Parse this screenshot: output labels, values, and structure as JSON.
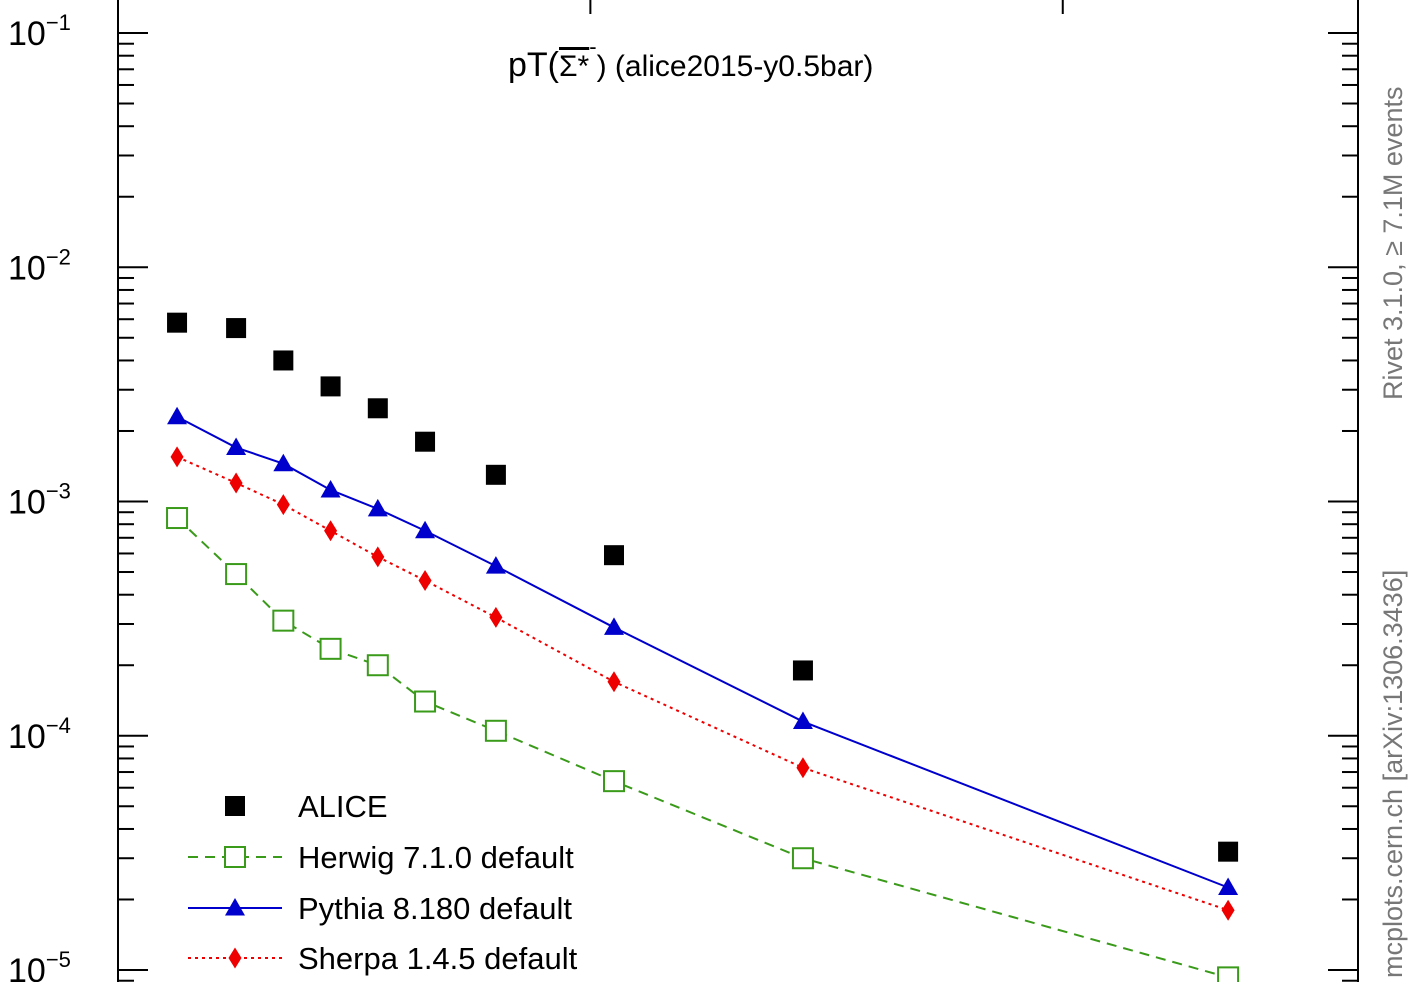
{
  "chart_data": {
    "type": "scatter",
    "title": {
      "prefix": "pT(",
      "particle": "Σ*",
      "charge": "-",
      "suffix": ") (alice2015-y0.5bar)"
    },
    "xlabel": "",
    "ylabel": "",
    "yscale": "log",
    "ylim": [
      1e-05,
      0.14
    ],
    "xlim": [
      0,
      10.5
    ],
    "y_ticks": [
      {
        "value": 1e-05,
        "base": "10",
        "exp": "−5"
      },
      {
        "value": 0.0001,
        "base": "10",
        "exp": "−4"
      },
      {
        "value": 0.001,
        "base": "10",
        "exp": "−3"
      },
      {
        "value": 0.01,
        "base": "10",
        "exp": "−2"
      },
      {
        "value": 0.1,
        "base": "10",
        "exp": "−1"
      }
    ],
    "x_major_ticks": [
      4,
      8
    ],
    "x": [
      0.5,
      1.0,
      1.4,
      1.8,
      2.2,
      2.6,
      3.2,
      4.2,
      5.8,
      9.4
    ],
    "series": [
      {
        "name": "ALICE",
        "color": "#000000",
        "marker": "filled-square",
        "line": "none",
        "values": [
          0.0058,
          0.0055,
          0.004,
          0.0031,
          0.0025,
          0.0018,
          0.0013,
          0.00059,
          0.00019,
          3.2e-05
        ]
      },
      {
        "name": "Herwig 7.1.0 default",
        "color": "#3a9a1a",
        "marker": "open-square",
        "line": "dashed",
        "values": [
          0.00085,
          0.00049,
          0.00031,
          0.000235,
          0.0002,
          0.00014,
          0.000105,
          6.4e-05,
          3e-05,
          9.3e-06
        ]
      },
      {
        "name": "Pythia 8.180 default",
        "color": "#0000cc",
        "marker": "filled-triangle",
        "line": "solid",
        "values": [
          0.0023,
          0.0017,
          0.00145,
          0.00112,
          0.00093,
          0.00075,
          0.00053,
          0.00029,
          0.000115,
          2.25e-05
        ]
      },
      {
        "name": "Sherpa 1.4.5 default",
        "color": "#ee0000",
        "marker": "filled-diamond",
        "line": "dotted",
        "values": [
          0.00155,
          0.0012,
          0.00097,
          0.00075,
          0.00058,
          0.00046,
          0.00032,
          0.00017,
          7.3e-05,
          1.8e-05
        ]
      }
    ]
  },
  "side_labels": {
    "top": "Rivet 3.1.0, ≥ 7.1M events",
    "bottom": "mcplots.cern.ch [arXiv:1306.3436]"
  }
}
